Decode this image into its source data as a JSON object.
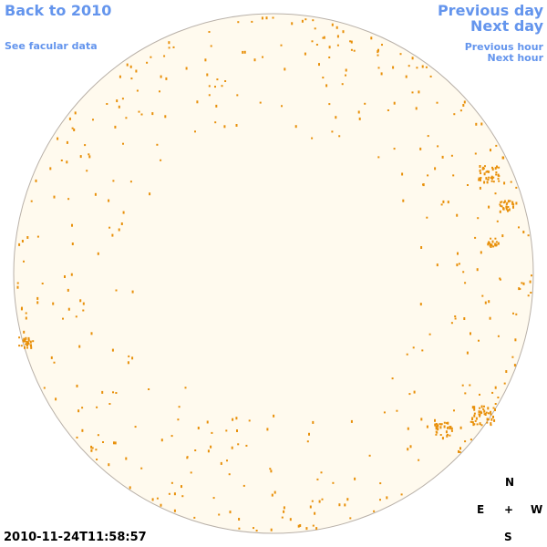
{
  "links": {
    "back": "Back to 2010",
    "facular": "See facular data",
    "previous_day": "Previous day",
    "next_day": "Next day",
    "previous_hour": "Previous hour",
    "next_hour": "Next hour"
  },
  "compass": {
    "north": "N",
    "east": "E",
    "center": "+",
    "west": "W",
    "south": "S"
  },
  "timestamp": "2010-11-24T11:58:57"
}
